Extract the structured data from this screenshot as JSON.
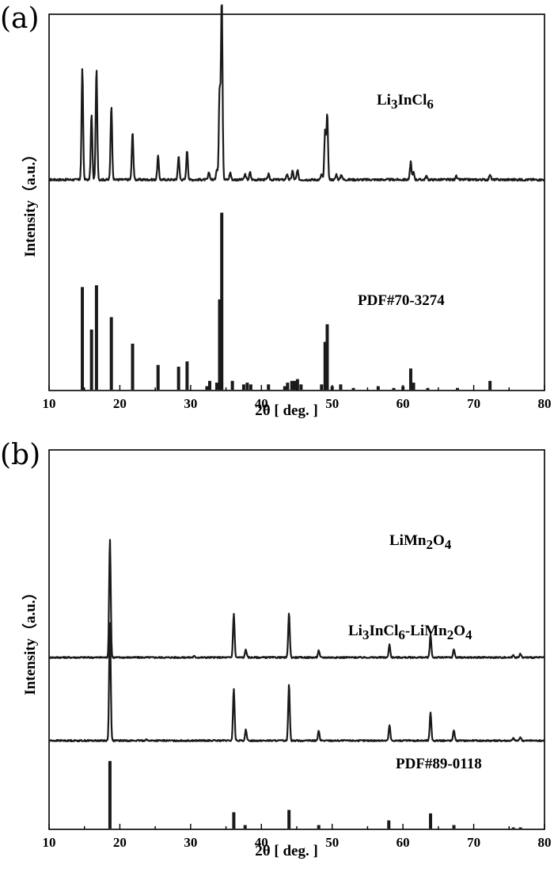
{
  "chart_data": [
    {
      "type": "line",
      "panel_label": "(a)",
      "xlabel": "2θ [ deg. ]",
      "ylabel": "Intensity（a.u.）",
      "xlim": [
        10,
        80
      ],
      "x_ticks": [
        10,
        20,
        30,
        40,
        50,
        60,
        70,
        80
      ],
      "y_ticks": "none",
      "grid": false,
      "series": [
        {
          "name": "Li3InCl6",
          "name_display": [
            "Li",
            "3",
            "InCl",
            "6"
          ],
          "kind": "pattern",
          "offset": 1.15,
          "peaks": [
            {
              "x": 14.7,
              "y": 0.61
            },
            {
              "x": 16.0,
              "y": 0.36
            },
            {
              "x": 16.7,
              "y": 0.61
            },
            {
              "x": 18.8,
              "y": 0.41
            },
            {
              "x": 21.8,
              "y": 0.26
            },
            {
              "x": 25.4,
              "y": 0.13
            },
            {
              "x": 28.3,
              "y": 0.13
            },
            {
              "x": 29.5,
              "y": 0.16
            },
            {
              "x": 32.6,
              "y": 0.04
            },
            {
              "x": 33.7,
              "y": 0.06
            },
            {
              "x": 34.1,
              "y": 0.5
            },
            {
              "x": 34.4,
              "y": 1.0
            },
            {
              "x": 35.6,
              "y": 0.04
            },
            {
              "x": 37.7,
              "y": 0.03
            },
            {
              "x": 38.4,
              "y": 0.04
            },
            {
              "x": 41.0,
              "y": 0.03
            },
            {
              "x": 43.6,
              "y": 0.03
            },
            {
              "x": 44.4,
              "y": 0.05
            },
            {
              "x": 45.1,
              "y": 0.05
            },
            {
              "x": 48.5,
              "y": 0.03
            },
            {
              "x": 49.0,
              "y": 0.27
            },
            {
              "x": 49.3,
              "y": 0.36
            },
            {
              "x": 50.6,
              "y": 0.03
            },
            {
              "x": 51.3,
              "y": 0.03
            },
            {
              "x": 61.1,
              "y": 0.1
            },
            {
              "x": 61.5,
              "y": 0.04
            },
            {
              "x": 63.3,
              "y": 0.02
            },
            {
              "x": 67.5,
              "y": 0.02
            },
            {
              "x": 72.3,
              "y": 0.03
            }
          ]
        },
        {
          "name": "PDF#70-3274",
          "kind": "reference",
          "offset": 0.0,
          "peaks": [
            {
              "x": 14.7,
              "y": 0.58
            },
            {
              "x": 16.0,
              "y": 0.34
            },
            {
              "x": 16.7,
              "y": 0.59
            },
            {
              "x": 18.8,
              "y": 0.41
            },
            {
              "x": 21.8,
              "y": 0.26
            },
            {
              "x": 25.4,
              "y": 0.14
            },
            {
              "x": 28.3,
              "y": 0.13
            },
            {
              "x": 29.5,
              "y": 0.16
            },
            {
              "x": 32.3,
              "y": 0.02
            },
            {
              "x": 32.7,
              "y": 0.05
            },
            {
              "x": 33.7,
              "y": 0.04
            },
            {
              "x": 34.1,
              "y": 0.51
            },
            {
              "x": 34.4,
              "y": 1.0
            },
            {
              "x": 35.9,
              "y": 0.05
            },
            {
              "x": 37.5,
              "y": 0.03
            },
            {
              "x": 38.0,
              "y": 0.04
            },
            {
              "x": 38.5,
              "y": 0.03
            },
            {
              "x": 41.0,
              "y": 0.03
            },
            {
              "x": 43.3,
              "y": 0.02
            },
            {
              "x": 43.7,
              "y": 0.04
            },
            {
              "x": 44.3,
              "y": 0.05
            },
            {
              "x": 44.7,
              "y": 0.05
            },
            {
              "x": 45.1,
              "y": 0.06
            },
            {
              "x": 45.6,
              "y": 0.03
            },
            {
              "x": 48.5,
              "y": 0.03
            },
            {
              "x": 49.0,
              "y": 0.27
            },
            {
              "x": 49.3,
              "y": 0.37
            },
            {
              "x": 50.0,
              "y": 0.02
            },
            {
              "x": 51.2,
              "y": 0.03
            },
            {
              "x": 53.0,
              "y": 0.01
            },
            {
              "x": 56.5,
              "y": 0.02
            },
            {
              "x": 58.7,
              "y": 0.01
            },
            {
              "x": 60.0,
              "y": 0.02
            },
            {
              "x": 61.1,
              "y": 0.12
            },
            {
              "x": 61.5,
              "y": 0.04
            },
            {
              "x": 63.5,
              "y": 0.01
            },
            {
              "x": 67.7,
              "y": 0.01
            },
            {
              "x": 72.3,
              "y": 0.05
            }
          ]
        }
      ]
    },
    {
      "type": "line",
      "panel_label": "(b)",
      "xlabel": "2θ [ deg. ]",
      "ylabel": "Intensity（a.u.）",
      "xlim": [
        10,
        80
      ],
      "x_ticks": [
        10,
        20,
        30,
        40,
        50,
        60,
        70,
        80
      ],
      "y_ticks": "none",
      "grid": false,
      "series": [
        {
          "name": "LiMn2O4",
          "name_display": [
            "LiMn",
            "2",
            "O",
            "4"
          ],
          "kind": "pattern",
          "offset": 1.42,
          "peaks": [
            {
              "x": 18.6,
              "y": 1.0
            },
            {
              "x": 30.5,
              "y": 0.01
            },
            {
              "x": 36.1,
              "y": 0.37
            },
            {
              "x": 37.8,
              "y": 0.07
            },
            {
              "x": 43.9,
              "y": 0.38
            },
            {
              "x": 48.1,
              "y": 0.06
            },
            {
              "x": 58.1,
              "y": 0.11
            },
            {
              "x": 63.9,
              "y": 0.19
            },
            {
              "x": 67.2,
              "y": 0.07
            },
            {
              "x": 75.6,
              "y": 0.02
            },
            {
              "x": 76.6,
              "y": 0.03
            }
          ]
        },
        {
          "name": "Li3InCl6-LiMn2O4",
          "name_display": [
            "Li",
            "3",
            "InCl",
            "6",
            "-LiMn",
            "2",
            "O",
            "4"
          ],
          "kind": "pattern",
          "offset": 0.72,
          "peaks": [
            {
              "x": 18.6,
              "y": 0.99
            },
            {
              "x": 23.7,
              "y": 0.01
            },
            {
              "x": 36.1,
              "y": 0.44
            },
            {
              "x": 37.8,
              "y": 0.09
            },
            {
              "x": 43.9,
              "y": 0.48
            },
            {
              "x": 48.1,
              "y": 0.08
            },
            {
              "x": 58.1,
              "y": 0.13
            },
            {
              "x": 63.9,
              "y": 0.24
            },
            {
              "x": 67.2,
              "y": 0.09
            },
            {
              "x": 75.6,
              "y": 0.02
            },
            {
              "x": 76.6,
              "y": 0.03
            }
          ]
        },
        {
          "name": "PDF#89-0118",
          "kind": "reference",
          "offset": 0.0,
          "peaks": [
            {
              "x": 18.6,
              "y": 0.58
            },
            {
              "x": 36.1,
              "y": 0.14
            },
            {
              "x": 37.7,
              "y": 0.03
            },
            {
              "x": 43.9,
              "y": 0.16
            },
            {
              "x": 48.1,
              "y": 0.03
            },
            {
              "x": 58.0,
              "y": 0.07
            },
            {
              "x": 63.9,
              "y": 0.13
            },
            {
              "x": 67.2,
              "y": 0.03
            },
            {
              "x": 75.6,
              "y": 0.01
            },
            {
              "x": 76.6,
              "y": 0.01
            }
          ]
        }
      ]
    }
  ]
}
